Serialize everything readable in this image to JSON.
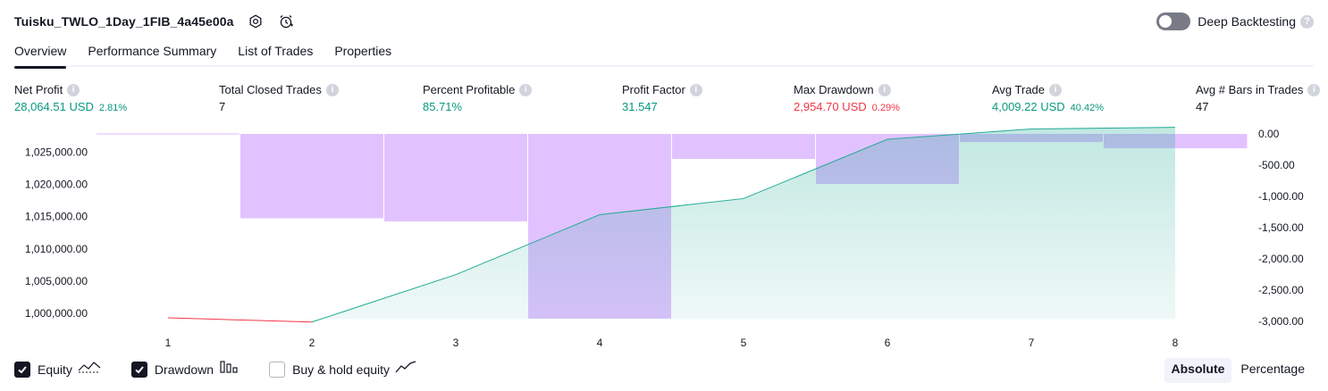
{
  "header": {
    "strategy_name": "Tuisku_TWLO_1Day_1FIB_4a45e00a",
    "deep_backtesting_label": "Deep Backtesting",
    "deep_backtesting_enabled": false
  },
  "tabs": [
    {
      "label": "Overview",
      "active": true
    },
    {
      "label": "Performance Summary",
      "active": false
    },
    {
      "label": "List of Trades",
      "active": false
    },
    {
      "label": "Properties",
      "active": false
    }
  ],
  "stats": {
    "net_profit": {
      "label": "Net Profit",
      "value": "28,064.51 USD",
      "percent": "2.81%"
    },
    "total_closed_trades": {
      "label": "Total Closed Trades",
      "value": "7"
    },
    "percent_profitable": {
      "label": "Percent Profitable",
      "value": "85.71%"
    },
    "profit_factor": {
      "label": "Profit Factor",
      "value": "31.547"
    },
    "max_drawdown": {
      "label": "Max Drawdown",
      "value": "2,954.70 USD",
      "percent": "0.29%"
    },
    "avg_trade": {
      "label": "Avg Trade",
      "value": "4,009.22 USD",
      "percent": "40.42%"
    },
    "avg_bars": {
      "label": "Avg # Bars in Trades",
      "value": "47"
    }
  },
  "legend": {
    "equity": {
      "label": "Equity",
      "checked": true
    },
    "drawdown": {
      "label": "Drawdown",
      "checked": true
    },
    "buy_hold": {
      "label": "Buy & hold equity",
      "checked": false
    }
  },
  "mode": {
    "absolute_label": "Absolute",
    "percentage_label": "Percentage",
    "selected": "Absolute"
  },
  "colors": {
    "positive": "#089981",
    "negative": "#f23645",
    "equity_line_up": "#22ab94",
    "equity_line_down": "#f23645",
    "equity_fill": "#22ab94",
    "drawdown_fill": "#e1c2ff",
    "text": "#131722",
    "axis_text": "#131722"
  },
  "chart_data": {
    "type": "line+bar",
    "x": [
      1,
      2,
      3,
      4,
      5,
      6,
      7,
      8
    ],
    "equity": {
      "name": "Equity",
      "start": {
        "x": 0,
        "y": 999300
      },
      "values": [
        999100,
        998650,
        1006000,
        1015300,
        1017800,
        1027000,
        1028600,
        1028850
      ]
    },
    "drawdown": {
      "name": "Drawdown",
      "values": [
        0,
        -1350,
        -1400,
        -2954.7,
        -400,
        -800,
        -130,
        -230
      ],
      "extra_tail": -230
    },
    "left_axis": {
      "ticks": [
        "1,000,000.00",
        "1,005,000.00",
        "1,010,000.00",
        "1,015,000.00",
        "1,020,000.00",
        "1,025,000.00"
      ],
      "tick_values": [
        1000000,
        1005000,
        1010000,
        1015000,
        1020000,
        1025000
      ]
    },
    "right_axis": {
      "ticks": [
        "0.00",
        "-500.00",
        "-1,000.00",
        "-1,500.00",
        "-2,000.00",
        "-2,500.00",
        "-3,000.00"
      ],
      "tick_values": [
        0,
        -500,
        -1000,
        -1500,
        -2000,
        -2500,
        -3000
      ]
    },
    "x_ticks": [
      "1",
      "2",
      "3",
      "4",
      "5",
      "6",
      "7",
      "8"
    ]
  }
}
